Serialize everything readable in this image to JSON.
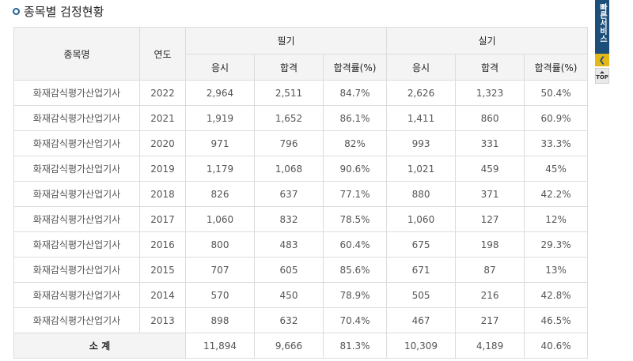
{
  "section": {
    "title": "종목별 검정현황"
  },
  "table": {
    "headers": {
      "item": "종목명",
      "year": "연도",
      "written": "필기",
      "practical": "실기",
      "applicants": "응시",
      "passed": "합격",
      "pass_rate": "합격률(%)"
    },
    "rows": [
      {
        "item": "화재감식평가산업기사",
        "year": "2022",
        "w_app": "2,964",
        "w_pass": "2,511",
        "w_rate": "84.7%",
        "p_app": "2,626",
        "p_pass": "1,323",
        "p_rate": "50.4%"
      },
      {
        "item": "화재감식평가산업기사",
        "year": "2021",
        "w_app": "1,919",
        "w_pass": "1,652",
        "w_rate": "86.1%",
        "p_app": "1,411",
        "p_pass": "860",
        "p_rate": "60.9%"
      },
      {
        "item": "화재감식평가산업기사",
        "year": "2020",
        "w_app": "971",
        "w_pass": "796",
        "w_rate": "82%",
        "p_app": "993",
        "p_pass": "331",
        "p_rate": "33.3%"
      },
      {
        "item": "화재감식평가산업기사",
        "year": "2019",
        "w_app": "1,179",
        "w_pass": "1,068",
        "w_rate": "90.6%",
        "p_app": "1,021",
        "p_pass": "459",
        "p_rate": "45%"
      },
      {
        "item": "화재감식평가산업기사",
        "year": "2018",
        "w_app": "826",
        "w_pass": "637",
        "w_rate": "77.1%",
        "p_app": "880",
        "p_pass": "371",
        "p_rate": "42.2%"
      },
      {
        "item": "화재감식평가산업기사",
        "year": "2017",
        "w_app": "1,060",
        "w_pass": "832",
        "w_rate": "78.5%",
        "p_app": "1,060",
        "p_pass": "127",
        "p_rate": "12%"
      },
      {
        "item": "화재감식평가산업기사",
        "year": "2016",
        "w_app": "800",
        "w_pass": "483",
        "w_rate": "60.4%",
        "p_app": "675",
        "p_pass": "198",
        "p_rate": "29.3%"
      },
      {
        "item": "화재감식평가산업기사",
        "year": "2015",
        "w_app": "707",
        "w_pass": "605",
        "w_rate": "85.6%",
        "p_app": "671",
        "p_pass": "87",
        "p_rate": "13%"
      },
      {
        "item": "화재감식평가산업기사",
        "year": "2014",
        "w_app": "570",
        "w_pass": "450",
        "w_rate": "78.9%",
        "p_app": "505",
        "p_pass": "216",
        "p_rate": "42.8%"
      },
      {
        "item": "화재감식평가산업기사",
        "year": "2013",
        "w_app": "898",
        "w_pass": "632",
        "w_rate": "70.4%",
        "p_app": "467",
        "p_pass": "217",
        "p_rate": "46.5%"
      }
    ],
    "total": {
      "label": "소 계",
      "w_app": "11,894",
      "w_pass": "9,666",
      "w_rate": "81.3%",
      "p_app": "10,309",
      "p_pass": "4,189",
      "p_rate": "40.6%"
    }
  },
  "quick_service": {
    "label": "빠른서비스",
    "collapse_icon": "chevron-left-icon",
    "top_label": "TOP",
    "colors": {
      "rail": "#1c4e7a",
      "toggle": "#e3b817"
    }
  }
}
